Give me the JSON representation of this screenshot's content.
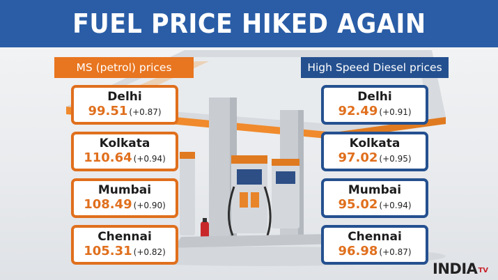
{
  "title": "FUEL PRICE HIKED AGAIN",
  "petrol": {
    "label": "MS (petrol) prices",
    "cities": [
      {
        "city": "Delhi",
        "price": "99.51",
        "change": "(+0.87)"
      },
      {
        "city": "Kolkata",
        "price": "110.64",
        "change": "(+0.94)"
      },
      {
        "city": "Mumbai",
        "price": "108.49",
        "change": "(+0.90)"
      },
      {
        "city": "Chennai",
        "price": "105.31",
        "change": "(+0.82)"
      }
    ]
  },
  "diesel": {
    "label": "High Speed Diesel prices",
    "cities": [
      {
        "city": "Delhi",
        "price": "92.49",
        "change": "(+0.91)"
      },
      {
        "city": "Kolkata",
        "price": "97.02",
        "change": "(+0.95)"
      },
      {
        "city": "Mumbai",
        "price": "95.02",
        "change": "(+0.94)"
      },
      {
        "city": "Chennai",
        "price": "96.98",
        "change": "(+0.87)"
      }
    ]
  },
  "logo": {
    "brand": "INDIA",
    "suffix": "TV"
  },
  "colors": {
    "header": "#2a5da6",
    "petrol_accent": "#e06f1d",
    "diesel_accent": "#24508f"
  }
}
